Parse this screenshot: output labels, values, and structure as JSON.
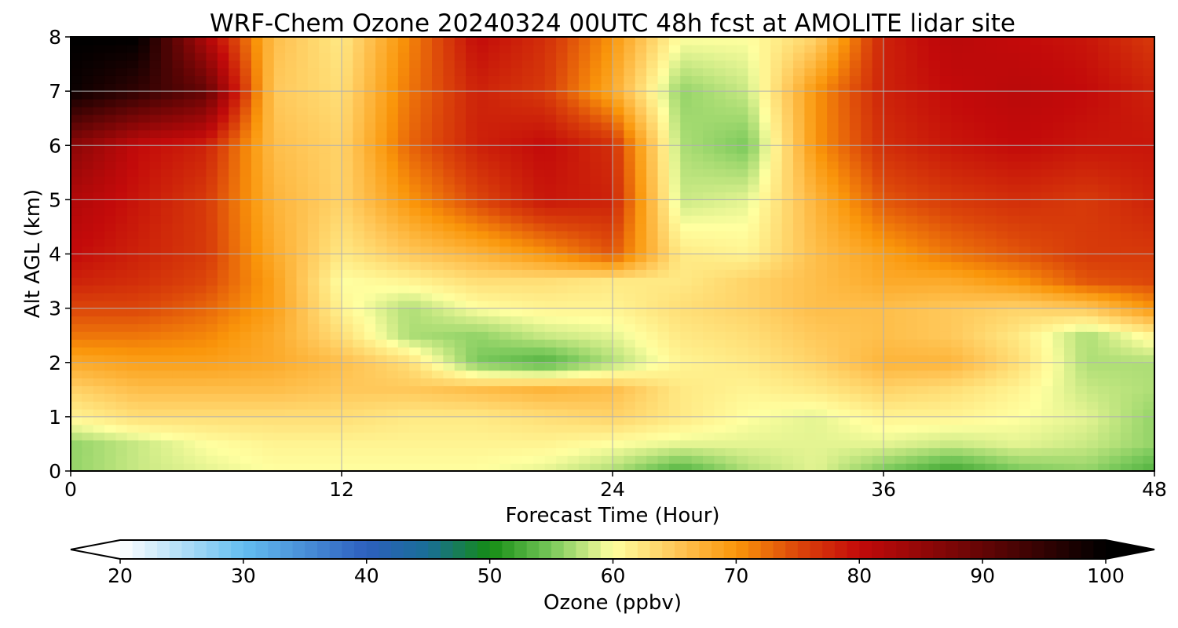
{
  "chart_data": {
    "type": "heatmap",
    "title": "WRF-Chem Ozone  20240324 00UTC 48h fcst at AMOLITE lidar site",
    "xlabel": "Forecast Time (Hour)",
    "ylabel": "Alt AGL (km)",
    "xlim": [
      0,
      48
    ],
    "ylim": [
      0,
      8
    ],
    "x_ticks": [
      0,
      12,
      24,
      36,
      48
    ],
    "y_ticks": [
      0,
      1,
      2,
      3,
      4,
      5,
      6,
      7,
      8
    ],
    "grid": true,
    "x": [
      0,
      3,
      6,
      9,
      12,
      15,
      18,
      21,
      24,
      27,
      30,
      33,
      36,
      39,
      42,
      45,
      48
    ],
    "y": [
      0,
      0.5,
      1,
      1.5,
      2,
      2.5,
      3,
      3.5,
      4,
      5,
      6,
      7,
      8
    ],
    "z": [
      [
        56,
        58,
        59,
        60,
        60,
        60,
        60,
        59,
        57,
        53,
        57,
        59,
        55,
        52,
        55,
        56,
        53
      ],
      [
        56,
        58,
        60,
        61,
        61,
        61,
        61,
        61,
        60,
        59,
        59,
        59,
        59,
        58,
        59,
        58,
        56
      ],
      [
        61,
        63,
        63,
        63,
        63,
        62,
        62,
        63,
        64,
        62,
        60,
        59,
        61,
        61,
        60,
        59,
        56
      ],
      [
        64,
        66,
        66,
        66,
        65,
        65,
        66,
        67,
        66,
        62,
        61,
        62,
        64,
        63,
        61,
        58,
        57
      ],
      [
        68,
        69,
        69,
        68,
        66,
        63,
        55,
        53,
        57,
        61,
        62,
        64,
        67,
        67,
        63,
        57,
        57
      ],
      [
        72,
        72,
        71,
        68,
        63,
        57,
        56,
        58,
        59,
        62,
        63,
        65,
        66,
        65,
        62,
        57,
        61
      ],
      [
        75,
        75,
        73,
        69,
        61,
        57,
        60,
        61,
        61,
        63,
        64,
        66,
        66,
        65,
        64,
        65,
        70
      ],
      [
        78,
        77,
        75,
        69,
        60,
        61,
        63,
        63,
        62,
        62,
        64,
        66,
        68,
        68,
        70,
        74,
        75
      ],
      [
        80,
        78,
        76,
        68,
        62,
        65,
        67,
        70,
        74,
        62,
        61,
        66,
        69,
        72,
        74,
        76,
        76
      ],
      [
        82,
        79,
        76,
        67,
        64,
        70,
        75,
        79,
        78,
        58,
        59,
        67,
        74,
        76,
        77,
        76,
        78
      ],
      [
        86,
        80,
        78,
        66,
        64,
        73,
        78,
        80,
        77,
        57,
        55,
        70,
        77,
        79,
        80,
        79,
        79
      ],
      [
        99,
        95,
        90,
        65,
        63,
        72,
        78,
        76,
        68,
        56,
        58,
        70,
        78,
        80,
        81,
        80,
        78
      ],
      [
        100,
        100,
        82,
        66,
        62,
        71,
        80,
        77,
        70,
        60,
        60,
        64,
        78,
        81,
        80,
        79,
        76
      ]
    ],
    "colorbar": {
      "label": "Ozone  (ppbv)",
      "min": 20,
      "max": 100,
      "ticks": [
        20,
        30,
        40,
        50,
        60,
        70,
        80,
        90,
        100
      ],
      "extend": "both",
      "orientation": "horizontal"
    }
  }
}
